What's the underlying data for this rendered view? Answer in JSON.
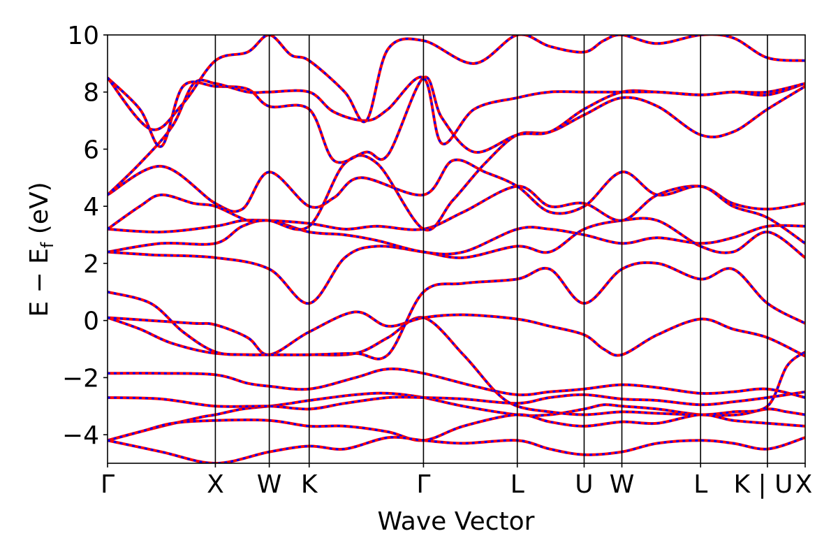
{
  "chart_data": {
    "type": "line",
    "xlabel": "Wave Vector",
    "ylabel": "E − E",
    "ylabel_sub": "f",
    "ylabel_unit": " (eV)",
    "ylim": [
      -5,
      10
    ],
    "yticks": [
      {
        "value": -4,
        "label": "−4"
      },
      {
        "value": -2,
        "label": "−2"
      },
      {
        "value": 0,
        "label": "0"
      },
      {
        "value": 2,
        "label": "2"
      },
      {
        "value": 4,
        "label": "4"
      },
      {
        "value": 6,
        "label": "6"
      },
      {
        "value": 8,
        "label": "8"
      },
      {
        "value": 10,
        "label": "10"
      }
    ],
    "xlim": [
      0,
      6.47
    ],
    "kpoints": [
      {
        "label": "Γ",
        "pos": 0
      },
      {
        "label": "X",
        "pos": 1.0
      },
      {
        "label": "W",
        "pos": 1.5
      },
      {
        "label": "K",
        "pos": 1.87
      },
      {
        "label": "Γ",
        "pos": 2.93
      },
      {
        "label": "L",
        "pos": 3.8
      },
      {
        "label": "U",
        "pos": 4.42
      },
      {
        "label": "W",
        "pos": 4.77
      },
      {
        "label": "L",
        "pos": 5.5
      },
      {
        "label": "K | U",
        "pos": 6.12
      },
      {
        "label": "X",
        "pos": 6.47
      }
    ],
    "line_colors": {
      "band_a": "#ff0000",
      "band_b": "#0000ff"
    },
    "bands": [
      {
        "x": [
          0,
          0.4,
          0.85,
          1.0,
          1.25,
          1.5,
          1.7,
          1.87,
          2.3,
          2.6,
          2.93,
          3.3,
          3.8,
          4.1,
          4.42,
          4.6,
          4.77,
          5.1,
          5.5,
          5.85,
          6.12,
          6.3,
          6.47
        ],
        "y": [
          -4.2,
          -3.8,
          -3.4,
          -3.3,
          -3.1,
          -3.0,
          -2.9,
          -2.8,
          -2.6,
          -2.55,
          -2.7,
          -3.0,
          -3.3,
          -3.3,
          -3.1,
          -2.95,
          -3.0,
          -3.1,
          -3.3,
          -3.3,
          -3.1,
          -3.2,
          -3.3
        ]
      },
      {
        "x": [
          0,
          0.5,
          1.0,
          1.5,
          1.87,
          2.2,
          2.6,
          2.93,
          3.3,
          3.8,
          4.1,
          4.42,
          4.77,
          5.1,
          5.5,
          5.8,
          6.12,
          6.47
        ],
        "y": [
          -2.7,
          -2.75,
          -3.0,
          -3.0,
          -3.1,
          -2.9,
          -2.7,
          -2.7,
          -2.75,
          -2.9,
          -2.7,
          -2.6,
          -2.75,
          -2.8,
          -2.95,
          -2.85,
          -2.7,
          -2.5
        ]
      },
      {
        "x": [
          0,
          0.5,
          1.0,
          1.3,
          1.5,
          1.87,
          2.3,
          2.6,
          2.93,
          3.4,
          3.8,
          4.1,
          4.42,
          4.77,
          5.1,
          5.5,
          5.8,
          6.12,
          6.47
        ],
        "y": [
          -1.85,
          -1.85,
          -1.9,
          -2.2,
          -2.3,
          -2.4,
          -2.0,
          -1.7,
          -1.85,
          -2.3,
          -2.6,
          -2.5,
          -2.4,
          -2.25,
          -2.35,
          -2.55,
          -2.5,
          -2.4,
          -2.7
        ]
      },
      {
        "x": [
          0,
          0.3,
          0.6,
          1.0,
          1.5,
          1.87,
          2.3,
          2.6,
          2.93,
          3.3,
          3.6,
          3.8,
          4.1,
          4.42,
          4.77,
          5.1,
          5.5,
          5.8,
          6.12,
          6.3,
          6.47
        ],
        "y": [
          0.1,
          -0.3,
          -0.8,
          -1.15,
          -1.2,
          -1.2,
          -1.15,
          -0.6,
          0.1,
          -1.2,
          -2.5,
          -3.0,
          -3.2,
          -3.3,
          -3.2,
          -3.25,
          -3.3,
          -3.2,
          -3.0,
          -1.6,
          -1.1
        ]
      },
      {
        "x": [
          0,
          0.4,
          0.8,
          1.0,
          1.3,
          1.5,
          1.87,
          2.3,
          2.6,
          2.93,
          3.3,
          3.8,
          4.1,
          4.42,
          4.6,
          4.77,
          5.1,
          5.5,
          5.8,
          6.12,
          6.47
        ],
        "y": [
          0.1,
          0.0,
          -0.1,
          -0.15,
          -0.6,
          -1.2,
          -0.4,
          0.3,
          -0.2,
          0.1,
          0.2,
          0.05,
          -0.2,
          -0.5,
          -1.0,
          -1.2,
          -0.5,
          0.05,
          -0.3,
          -0.6,
          -1.25
        ]
      },
      {
        "x": [
          0,
          0.4,
          0.7,
          1.0,
          1.3,
          1.5,
          1.87,
          2.3,
          2.6,
          2.93,
          3.3,
          3.8,
          4.1,
          4.42,
          4.77,
          5.1,
          5.5,
          5.8,
          6.12,
          6.47
        ],
        "y": [
          1.0,
          0.6,
          -0.4,
          -1.1,
          -1.2,
          -1.2,
          -1.2,
          -1.15,
          -1.2,
          1.0,
          1.3,
          1.45,
          1.8,
          0.6,
          1.8,
          2.0,
          1.45,
          1.8,
          0.6,
          -0.1
        ]
      },
      {
        "x": [
          0,
          0.4,
          1.0,
          1.5,
          1.87,
          2.2,
          2.5,
          2.93,
          3.3,
          3.8,
          4.1,
          4.42,
          4.77,
          5.1,
          5.5,
          5.8,
          6.12,
          6.47
        ],
        "y": [
          2.4,
          2.3,
          2.2,
          1.8,
          0.6,
          2.2,
          2.6,
          2.4,
          2.2,
          2.6,
          2.4,
          3.2,
          3.5,
          3.5,
          2.6,
          2.4,
          3.1,
          2.2
        ]
      },
      {
        "x": [
          0,
          0.5,
          1.0,
          1.25,
          1.5,
          1.87,
          2.2,
          2.5,
          2.93,
          3.3,
          3.8,
          4.1,
          4.42,
          4.77,
          5.1,
          5.5,
          5.8,
          6.12,
          6.47
        ],
        "y": [
          2.4,
          2.7,
          2.7,
          3.3,
          3.5,
          3.1,
          3.0,
          2.8,
          2.4,
          2.4,
          3.2,
          3.2,
          3.0,
          2.7,
          2.9,
          2.7,
          2.9,
          3.3,
          3.3
        ]
      },
      {
        "x": [
          0,
          0.5,
          1.0,
          1.25,
          1.5,
          1.87,
          2.2,
          2.5,
          2.93,
          3.3,
          3.8,
          4.1,
          4.42,
          4.77,
          5.1,
          5.5,
          5.8,
          6.12,
          6.47
        ],
        "y": [
          3.2,
          3.1,
          3.3,
          3.5,
          3.5,
          3.4,
          3.2,
          3.3,
          3.2,
          3.8,
          4.7,
          4.0,
          4.1,
          3.5,
          4.4,
          4.7,
          4.1,
          3.9,
          4.1
        ]
      },
      {
        "x": [
          0,
          0.5,
          1.0,
          1.25,
          1.5,
          1.87,
          2.1,
          2.35,
          2.93,
          3.2,
          3.5,
          3.8,
          4.1,
          4.42,
          4.77,
          5.1,
          5.5,
          5.8,
          6.12,
          6.47
        ],
        "y": [
          4.4,
          5.4,
          4.1,
          3.9,
          5.2,
          4.0,
          4.3,
          5.0,
          4.4,
          5.6,
          5.2,
          4.7,
          3.8,
          4.0,
          5.2,
          4.4,
          4.7,
          4.0,
          3.6,
          2.7
        ]
      },
      {
        "x": [
          0,
          0.3,
          0.5,
          0.8,
          1.0,
          1.3,
          1.5,
          1.87,
          2.2,
          2.5,
          2.93,
          3.2,
          3.5,
          3.8,
          4.1,
          4.42,
          4.77,
          5.1,
          5.5,
          5.8,
          6.12,
          6.47
        ],
        "y": [
          3.2,
          4.0,
          4.4,
          4.1,
          4.0,
          3.5,
          3.5,
          3.3,
          5.5,
          5.5,
          3.2,
          4.2,
          5.5,
          6.5,
          6.6,
          7.2,
          7.8,
          7.5,
          6.5,
          6.6,
          7.4,
          8.2
        ]
      },
      {
        "x": [
          0,
          0.3,
          0.5,
          0.7,
          1.0,
          1.3,
          1.5,
          1.87,
          2.1,
          2.4,
          2.6,
          2.93,
          3.1,
          3.4,
          3.8,
          4.1,
          4.42,
          4.77,
          5.1,
          5.5,
          5.8,
          6.12,
          6.47
        ],
        "y": [
          8.5,
          7.4,
          6.1,
          8.2,
          8.2,
          8.1,
          7.5,
          7.4,
          5.6,
          5.9,
          5.8,
          8.5,
          7.1,
          5.9,
          6.5,
          6.6,
          7.4,
          8.0,
          8.0,
          7.9,
          8.0,
          7.9,
          8.3
        ]
      },
      {
        "x": [
          0,
          0.3,
          0.6,
          0.8,
          1.0,
          1.3,
          1.5,
          1.87,
          2.1,
          2.4,
          2.6,
          2.93,
          3.1,
          3.4,
          3.8,
          4.1,
          4.42,
          4.77,
          5.1,
          5.5,
          5.8,
          6.12,
          6.47
        ],
        "y": [
          4.4,
          5.5,
          6.8,
          8.3,
          8.3,
          8.0,
          8.0,
          8.0,
          7.3,
          7.0,
          7.4,
          8.5,
          6.2,
          7.4,
          7.8,
          8.0,
          8.0,
          8.0,
          8.0,
          7.9,
          8.0,
          8.0,
          8.3
        ]
      },
      {
        "x": [
          0,
          0.4,
          0.7,
          1.0,
          1.3,
          1.5,
          1.7,
          1.87,
          2.2,
          2.4,
          2.6,
          2.93,
          3.4,
          3.8,
          4.1,
          4.42,
          4.6,
          4.77,
          5.1,
          5.5,
          5.8,
          6.12,
          6.47
        ],
        "y": [
          8.5,
          6.7,
          7.6,
          9.1,
          9.4,
          10.0,
          9.3,
          9.1,
          8.0,
          7.0,
          9.5,
          9.8,
          9.0,
          10.0,
          9.6,
          9.4,
          9.8,
          10.0,
          9.7,
          10.0,
          9.9,
          9.2,
          9.1
        ]
      },
      {
        "x": [
          0,
          0.3,
          0.6,
          1.0,
          1.5,
          1.87,
          2.2,
          2.6,
          2.93,
          3.3,
          3.8,
          4.1,
          4.42,
          4.77,
          5.1,
          5.5,
          5.8,
          6.12,
          6.47
        ],
        "y": [
          -4.2,
          -3.9,
          -3.6,
          -3.5,
          -3.5,
          -3.7,
          -3.7,
          -3.9,
          -4.2,
          -3.7,
          -3.3,
          -3.55,
          -3.7,
          -3.55,
          -3.6,
          -3.3,
          -3.5,
          -3.6,
          -3.7
        ]
      },
      {
        "x": [
          0,
          0.5,
          1.0,
          1.5,
          1.87,
          2.2,
          2.6,
          2.93,
          3.3,
          3.8,
          4.1,
          4.42,
          4.77,
          5.1,
          5.5,
          5.8,
          6.12,
          6.47
        ],
        "y": [
          -4.2,
          -4.6,
          -5.0,
          -4.6,
          -4.4,
          -4.5,
          -4.1,
          -4.2,
          -4.3,
          -4.2,
          -4.5,
          -4.7,
          -4.6,
          -4.3,
          -4.2,
          -4.3,
          -4.5,
          -4.1
        ]
      }
    ]
  }
}
